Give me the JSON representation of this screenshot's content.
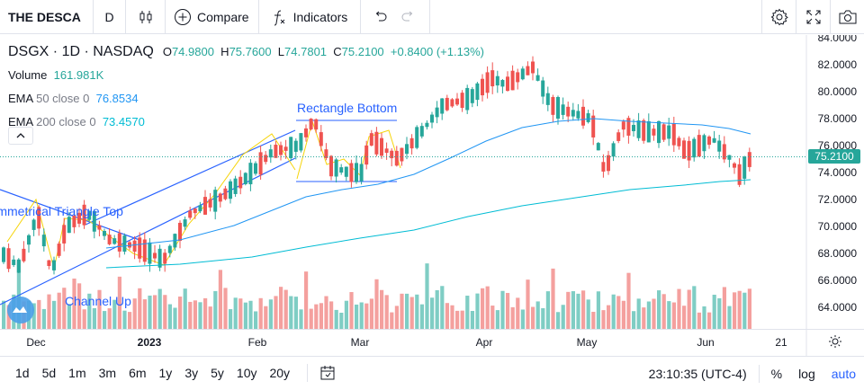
{
  "toolbar": {
    "symbol": "THE DESCA",
    "interval": "D",
    "compare_label": "Compare",
    "indicators_label": "Indicators"
  },
  "legend": {
    "symbol": "DSGX",
    "interval": "1D",
    "exchange": "NASDAQ",
    "open_label": "O",
    "open": "74.9800",
    "high_label": "H",
    "high": "75.7600",
    "low_label": "L",
    "low": "74.7801",
    "close_label": "C",
    "close": "75.2100",
    "change": "+0.8400 (+1.13%)",
    "volume_label": "Volume",
    "volume": "161.981K",
    "ema50_label": "EMA",
    "ema50_params": "50 close 0",
    "ema50_value": "76.8534",
    "ema200_label": "EMA",
    "ema200_params": "200 close 0",
    "ema200_value": "73.4570"
  },
  "price_axis": {
    "ticks": [
      "84.0000",
      "82.0000",
      "80.0000",
      "78.0000",
      "76.0000",
      "74.0000",
      "72.0000",
      "70.0000",
      "68.0000",
      "66.0000",
      "64.0000"
    ],
    "current_price": "75.2100"
  },
  "time_axis": {
    "ticks": [
      "Dec",
      "2023",
      "Feb",
      "Mar",
      "Apr",
      "May",
      "Jun",
      "21"
    ]
  },
  "drawings": {
    "rectangle_bottom": "Rectangle Bottom",
    "triangle_top": "Symmetrical Triangle Top",
    "channel_up": "Channel Up"
  },
  "bottom_bar": {
    "ranges": [
      "1d",
      "5d",
      "1m",
      "3m",
      "6m",
      "1y",
      "3y",
      "5y",
      "10y",
      "20y"
    ],
    "clock": "23:10:35 (UTC-4)",
    "percent": "%",
    "log": "log",
    "auto": "auto"
  },
  "colors": {
    "up": "#26a69a",
    "down": "#ef5350",
    "ema50": "#2196f3",
    "ema200": "#00bcd4",
    "accent": "#2962ff"
  }
}
